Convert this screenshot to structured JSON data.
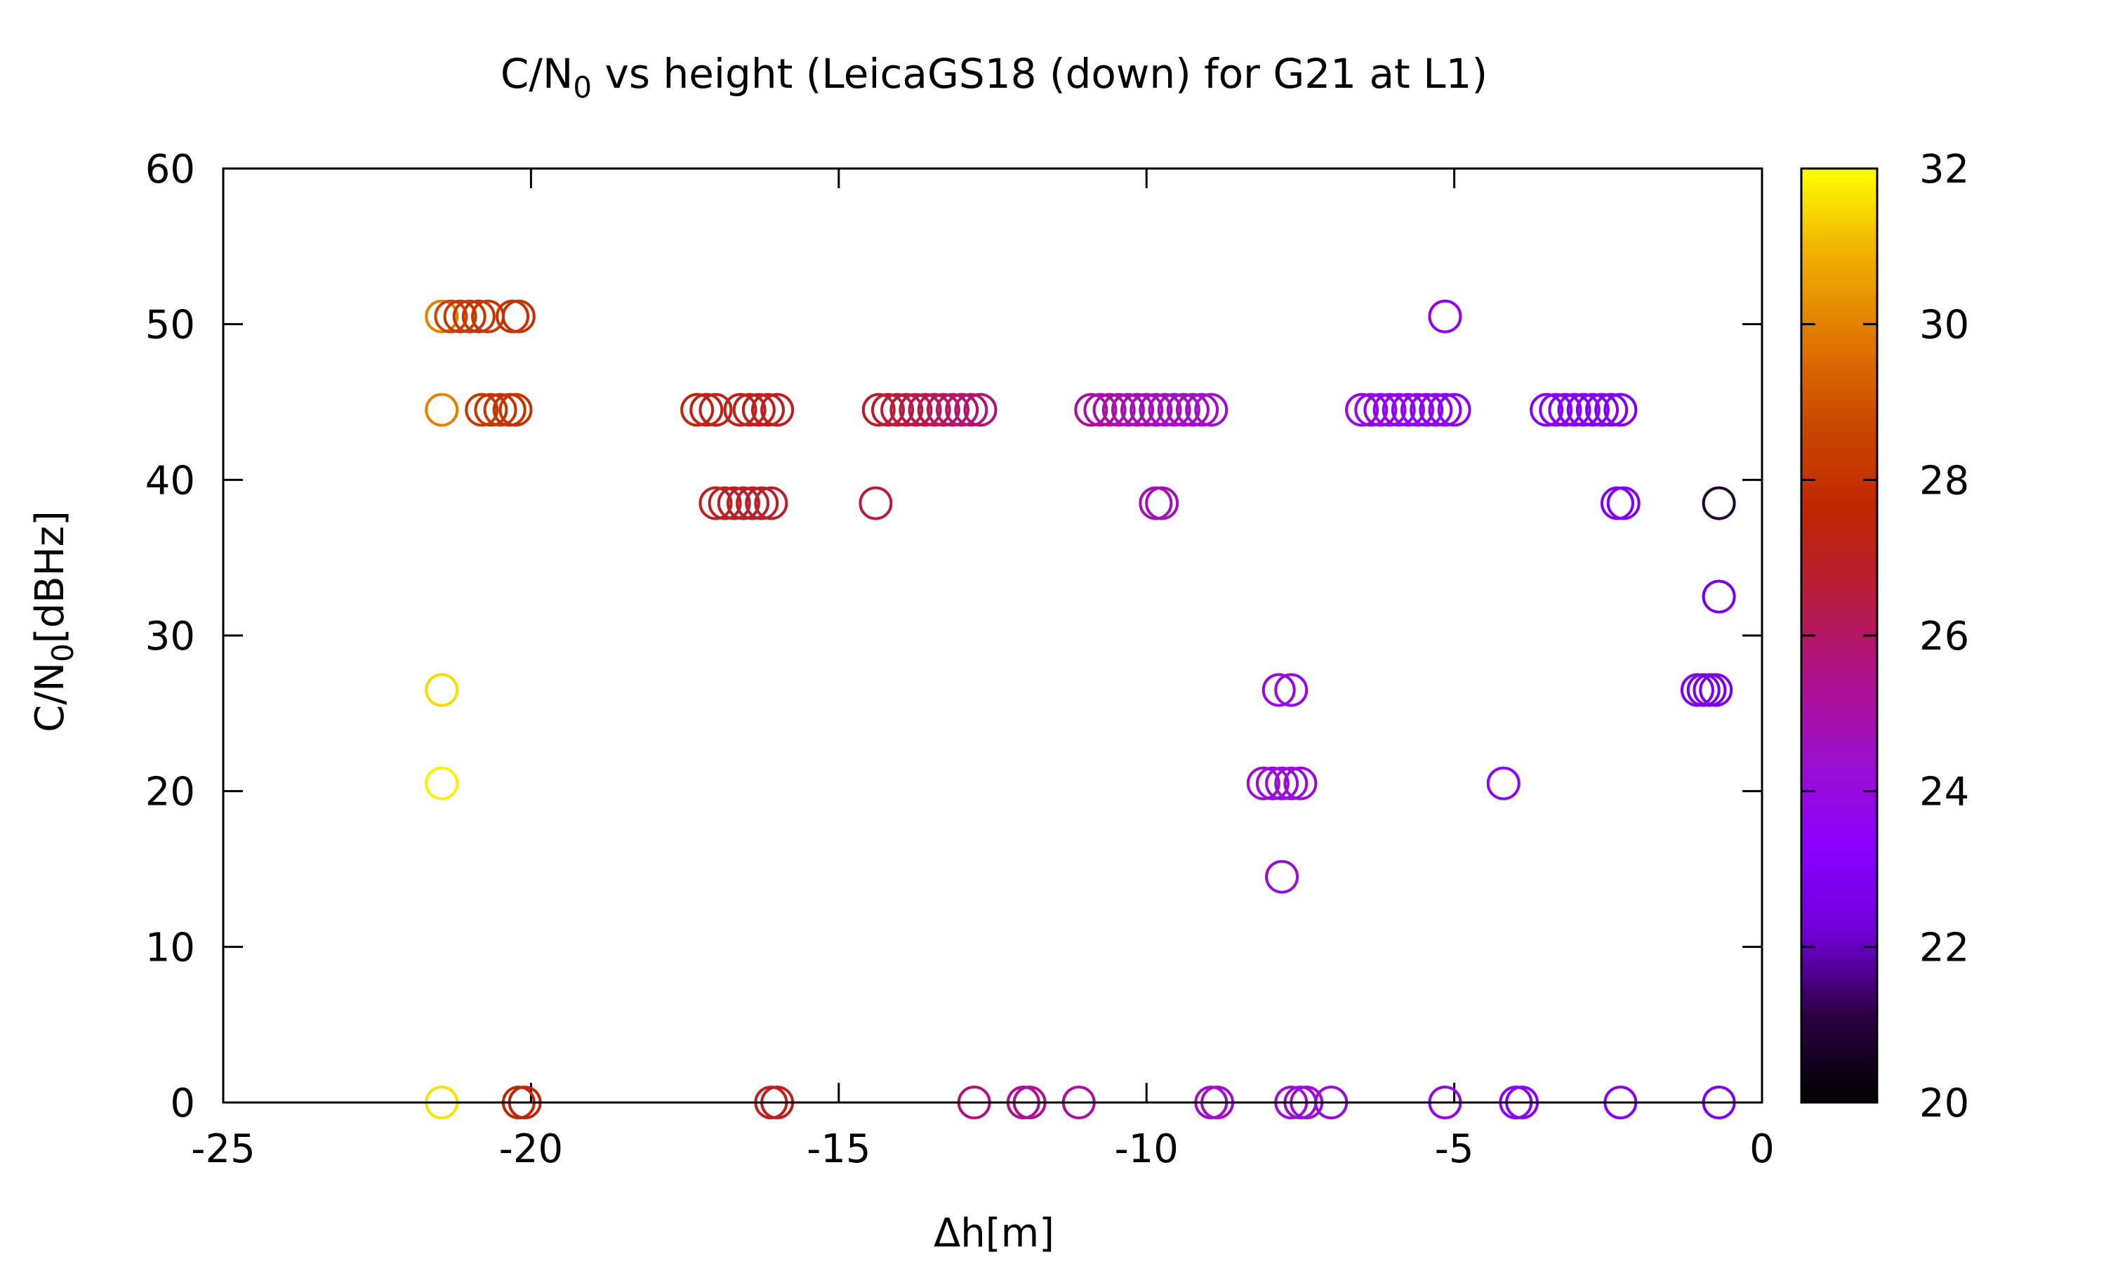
{
  "chart_data": {
    "type": "scatter",
    "title": {
      "main": "C/N",
      "sub": "0",
      "rest": " vs height (LeicaGS18 (down) for G21 at L1)"
    },
    "xlabel": "Δh[m]",
    "ylabel": {
      "main": "C/N",
      "sub": "0",
      "rest": "[dBHz]"
    },
    "xlim": [
      -25,
      0
    ],
    "ylim": [
      0,
      60
    ],
    "x_ticks": [
      -25,
      -20,
      -15,
      -10,
      -5,
      0
    ],
    "y_ticks": [
      0,
      10,
      20,
      30,
      40,
      50,
      60
    ],
    "colorbar": {
      "range": [
        20,
        32
      ],
      "ticks": [
        20,
        22,
        24,
        26,
        28,
        30,
        32
      ],
      "palette": [
        "#000000",
        "#2a0040",
        "#7000d8",
        "#8a00ff",
        "#9c10d0",
        "#b0108c",
        "#b81c3c",
        "#c02800",
        "#cc4800",
        "#e07800",
        "#f0b000",
        "#ffff00"
      ]
    },
    "series": [
      {
        "points": [
          [
            -21.45,
            50.5,
            30.0
          ],
          [
            -21.3,
            50.5,
            28.6
          ],
          [
            -21.15,
            50.5,
            28.3
          ],
          [
            -21.0,
            50.5,
            28.2
          ],
          [
            -20.85,
            50.5,
            28.1
          ],
          [
            -20.7,
            50.5,
            28.1
          ],
          [
            -20.3,
            50.5,
            28.0
          ],
          [
            -20.2,
            50.5,
            28.0
          ],
          [
            -21.45,
            44.5,
            30.0
          ],
          [
            -20.8,
            44.5,
            28.2
          ],
          [
            -20.65,
            44.5,
            28.1
          ],
          [
            -20.5,
            44.5,
            28.1
          ],
          [
            -20.35,
            44.5,
            28.0
          ],
          [
            -20.25,
            44.5,
            28.0
          ],
          [
            -21.45,
            26.5,
            31.5
          ],
          [
            -21.45,
            20.5,
            31.8
          ],
          [
            -21.45,
            0.0,
            31.6
          ],
          [
            -20.2,
            0.0,
            27.6
          ],
          [
            -20.1,
            0.0,
            27.4
          ],
          [
            -17.3,
            44.5,
            27.3
          ],
          [
            -17.15,
            44.5,
            27.2
          ],
          [
            -17.0,
            44.5,
            27.2
          ],
          [
            -16.6,
            44.5,
            27.2
          ],
          [
            -16.45,
            44.5,
            27.1
          ],
          [
            -16.3,
            44.5,
            27.1
          ],
          [
            -16.15,
            44.5,
            27.1
          ],
          [
            -16.0,
            44.5,
            27.0
          ],
          [
            -17.0,
            38.5,
            27.0
          ],
          [
            -16.85,
            38.5,
            27.0
          ],
          [
            -16.7,
            38.5,
            26.9
          ],
          [
            -16.55,
            38.5,
            26.9
          ],
          [
            -16.4,
            38.5,
            26.9
          ],
          [
            -16.25,
            38.5,
            26.8
          ],
          [
            -16.1,
            38.5,
            26.8
          ],
          [
            -16.1,
            0.0,
            27.1
          ],
          [
            -16.0,
            0.0,
            27.0
          ],
          [
            -14.4,
            38.5,
            26.6
          ],
          [
            -14.35,
            44.5,
            26.8
          ],
          [
            -14.2,
            44.5,
            26.7
          ],
          [
            -14.05,
            44.5,
            26.6
          ],
          [
            -13.9,
            44.5,
            26.5
          ],
          [
            -13.75,
            44.5,
            26.4
          ],
          [
            -13.6,
            44.5,
            26.3
          ],
          [
            -13.45,
            44.5,
            26.2
          ],
          [
            -13.3,
            44.5,
            26.1
          ],
          [
            -13.15,
            44.5,
            26.0
          ],
          [
            -13.0,
            44.5,
            25.9
          ],
          [
            -12.85,
            44.5,
            25.8
          ],
          [
            -12.7,
            44.5,
            25.7
          ],
          [
            -12.8,
            0.0,
            25.6
          ],
          [
            -12.0,
            0.0,
            25.4
          ],
          [
            -11.9,
            0.0,
            25.3
          ],
          [
            -11.1,
            0.0,
            25.1
          ],
          [
            -10.9,
            44.5,
            25.2
          ],
          [
            -10.75,
            44.5,
            25.1
          ],
          [
            -10.6,
            44.5,
            25.0
          ],
          [
            -10.45,
            44.5,
            25.0
          ],
          [
            -10.3,
            44.5,
            24.9
          ],
          [
            -10.15,
            44.5,
            24.9
          ],
          [
            -10.0,
            44.5,
            24.8
          ],
          [
            -9.85,
            44.5,
            24.8
          ],
          [
            -9.7,
            44.5,
            24.7
          ],
          [
            -9.55,
            44.5,
            24.7
          ],
          [
            -9.4,
            44.5,
            24.6
          ],
          [
            -9.25,
            44.5,
            24.6
          ],
          [
            -9.1,
            44.5,
            24.5
          ],
          [
            -8.95,
            44.5,
            24.5
          ],
          [
            -9.85,
            38.5,
            24.8
          ],
          [
            -9.75,
            38.5,
            24.7
          ],
          [
            -8.95,
            0.0,
            24.6
          ],
          [
            -8.85,
            0.0,
            24.5
          ],
          [
            -8.1,
            20.5,
            24.3
          ],
          [
            -7.95,
            20.5,
            24.3
          ],
          [
            -7.8,
            20.5,
            24.2
          ],
          [
            -7.65,
            20.5,
            24.2
          ],
          [
            -7.5,
            20.5,
            24.1
          ],
          [
            -7.85,
            26.5,
            24.0
          ],
          [
            -7.65,
            26.5,
            24.0
          ],
          [
            -7.8,
            14.5,
            24.2
          ],
          [
            -7.65,
            0.0,
            24.4
          ],
          [
            -7.5,
            0.0,
            24.3
          ],
          [
            -7.4,
            0.0,
            24.2
          ],
          [
            -7.0,
            0.0,
            24.1
          ],
          [
            -6.5,
            44.5,
            23.8
          ],
          [
            -6.35,
            44.5,
            23.8
          ],
          [
            -6.2,
            44.5,
            23.7
          ],
          [
            -6.05,
            44.5,
            23.7
          ],
          [
            -5.9,
            44.5,
            23.7
          ],
          [
            -5.75,
            44.5,
            23.6
          ],
          [
            -5.6,
            44.5,
            23.6
          ],
          [
            -5.45,
            44.5,
            23.5
          ],
          [
            -5.3,
            44.5,
            23.5
          ],
          [
            -5.15,
            44.5,
            23.5
          ],
          [
            -5.0,
            44.5,
            23.4
          ],
          [
            -5.15,
            50.5,
            23.5
          ],
          [
            -5.15,
            0.0,
            23.8
          ],
          [
            -4.2,
            20.5,
            23.6
          ],
          [
            -4.0,
            0.0,
            23.4
          ],
          [
            -3.9,
            0.0,
            23.3
          ],
          [
            -3.5,
            44.5,
            23.2
          ],
          [
            -3.35,
            44.5,
            23.2
          ],
          [
            -3.2,
            44.5,
            23.1
          ],
          [
            -3.05,
            44.5,
            23.1
          ],
          [
            -2.9,
            44.5,
            23.0
          ],
          [
            -2.75,
            44.5,
            23.0
          ],
          [
            -2.6,
            44.5,
            23.0
          ],
          [
            -2.45,
            44.5,
            22.9
          ],
          [
            -2.3,
            44.5,
            22.9
          ],
          [
            -2.35,
            38.5,
            23.0
          ],
          [
            -2.25,
            38.5,
            22.9
          ],
          [
            -2.3,
            0.0,
            23.1
          ],
          [
            -1.05,
            26.5,
            22.8
          ],
          [
            -0.95,
            26.5,
            22.7
          ],
          [
            -0.85,
            26.5,
            22.6
          ],
          [
            -0.75,
            26.5,
            22.6
          ],
          [
            -0.7,
            38.5,
            20.8
          ],
          [
            -0.7,
            32.5,
            22.6
          ],
          [
            -0.7,
            0.0,
            22.8
          ]
        ]
      }
    ]
  }
}
